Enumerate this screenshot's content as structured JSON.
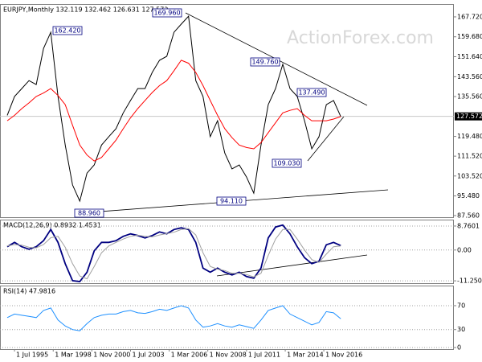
{
  "chart_data": [
    {
      "type": "line",
      "title": "EURJPY,Monthly 132.119 132.462 126.631 127.572",
      "watermark": "ActionForex.com",
      "x": [
        1995.0,
        1995.5,
        1996.0,
        1996.5,
        1997.0,
        1997.5,
        1998.0,
        1998.5,
        1999.0,
        1999.5,
        2000.0,
        2000.5,
        2001.0,
        2001.5,
        2002.0,
        2002.5,
        2003.0,
        2003.5,
        2004.0,
        2004.5,
        2005.0,
        2005.5,
        2006.0,
        2006.5,
        2007.0,
        2007.5,
        2008.0,
        2008.5,
        2009.0,
        2009.5,
        2010.0,
        2010.5,
        2011.0,
        2011.5,
        2012.0,
        2012.5,
        2013.0,
        2013.5,
        2014.0,
        2014.5,
        2015.0,
        2015.5,
        2016.0,
        2016.5,
        2017.0,
        2017.5,
        2018.0
      ],
      "xlim": [
        1994.5,
        2025.8
      ],
      "ylim": [
        86.9,
        172.9
      ],
      "yticks": [
        {
          "value": 167.72,
          "label": "167.720"
        },
        {
          "value": 159.68,
          "label": "159.680"
        },
        {
          "value": 151.64,
          "label": "151.640"
        },
        {
          "value": 143.56,
          "label": "143.560"
        },
        {
          "value": 135.56,
          "label": "135.560"
        },
        {
          "value": 119.48,
          "label": "119.480"
        },
        {
          "value": 111.52,
          "label": "111.520"
        },
        {
          "value": 103.52,
          "label": "103.520"
        },
        {
          "value": 95.48,
          "label": "95.480"
        },
        {
          "value": 87.56,
          "label": "87.560"
        }
      ],
      "grid": false,
      "last_price": 127.572,
      "annotations": [
        "169.960",
        "162.420",
        "88.960",
        "94.110",
        "149.760",
        "137.490",
        "109.030"
      ],
      "series": [
        {
          "color": "#000000",
          "values": [
            128,
            135.6,
            138.8,
            142,
            140.4,
            155,
            161.5,
            135.6,
            116,
            99.9,
            93.4,
            104.7,
            108,
            116,
            119.4,
            122.6,
            129,
            134,
            138.8,
            138.8,
            145.3,
            150.2,
            151.8,
            161.5,
            164.8,
            168,
            142,
            135.6,
            119.4,
            125.8,
            112.8,
            106.4,
            108,
            103.1,
            96.6,
            116,
            132.3,
            138.8,
            148.6,
            138.8,
            135.6,
            125.8,
            114.5,
            119.4,
            132.3,
            134,
            127.5
          ]
        },
        {
          "color": "#ff0000",
          "values": [
            125.8,
            128,
            130.7,
            133,
            135.6,
            137,
            138.8,
            136,
            132.3,
            124,
            116,
            112,
            109.6,
            111,
            114.5,
            118,
            122.6,
            127,
            130.7,
            134,
            137.2,
            140,
            142,
            146,
            150.2,
            149,
            145.3,
            140,
            134,
            128,
            122.6,
            119,
            116,
            115,
            114.5,
            117,
            121,
            125,
            129,
            130,
            130.7,
            128,
            125.8,
            125.8,
            125.8,
            126.5,
            127.5
          ]
        }
      ]
    },
    {
      "type": "line",
      "title": "MACD(12,26,9) 0.8932 1.4531",
      "x": [
        1995.0,
        1995.5,
        1996.0,
        1996.5,
        1997.0,
        1997.5,
        1998.0,
        1998.5,
        1999.0,
        1999.5,
        2000.0,
        2000.5,
        2001.0,
        2001.5,
        2002.0,
        2002.5,
        2003.0,
        2003.5,
        2004.0,
        2004.5,
        2005.0,
        2005.5,
        2006.0,
        2006.5,
        2007.0,
        2007.5,
        2008.0,
        2008.5,
        2009.0,
        2009.5,
        2010.0,
        2010.5,
        2011.0,
        2011.5,
        2012.0,
        2012.5,
        2013.0,
        2013.5,
        2014.0,
        2014.5,
        2015.0,
        2015.5,
        2016.0,
        2016.5,
        2017.0,
        2017.5,
        2018.0
      ],
      "xlim": [
        1994.5,
        2025.8
      ],
      "ylim": [
        -12.1,
        11.1
      ],
      "yticks": [
        8.7601,
        {
          "value": 0,
          "label": "0.00"
        },
        -11.2506
      ],
      "grid": true,
      "series": [
        {
          "color": "#000080",
          "values": [
            1.2,
            2.8,
            1.2,
            0.3,
            1.2,
            3.4,
            7.5,
            2.8,
            -5,
            -11.2,
            -11.5,
            -8.1,
            -0.3,
            2.8,
            2.8,
            3.4,
            5,
            5.9,
            5.3,
            4.4,
            5.3,
            6.6,
            5.9,
            7.5,
            8.1,
            7.5,
            2.8,
            -6.6,
            -8.1,
            -6.6,
            -8.1,
            -9.1,
            -8.1,
            -9.7,
            -10.3,
            -6.6,
            4.4,
            8.4,
            9.1,
            5.9,
            1.2,
            -2.8,
            -5,
            -4.1,
            1.9,
            2.8,
            1.6
          ]
        },
        {
          "color": "#a0a0a0",
          "values": [
            1.5,
            2,
            1.8,
            1,
            0.8,
            2,
            4.5,
            5,
            1,
            -5,
            -9.5,
            -10.5,
            -6,
            -1,
            1.5,
            2.8,
            4,
            5,
            5.4,
            5,
            4.8,
            5.5,
            6,
            6.5,
            7.5,
            7.8,
            5.5,
            -1,
            -6,
            -7,
            -7.5,
            -8.5,
            -8.5,
            -9,
            -9.8,
            -8.5,
            -2,
            4,
            7.5,
            7.5,
            4,
            0,
            -3.5,
            -4.5,
            -1.5,
            1.2,
            1.5
          ]
        }
      ]
    },
    {
      "type": "line",
      "title": "RSI(14) 47.9816",
      "x": [
        1995.0,
        1995.5,
        1996.0,
        1996.5,
        1997.0,
        1997.5,
        1998.0,
        1998.5,
        1999.0,
        1999.5,
        2000.0,
        2000.5,
        2001.0,
        2001.5,
        2002.0,
        2002.5,
        2003.0,
        2003.5,
        2004.0,
        2004.5,
        2005.0,
        2005.5,
        2006.0,
        2006.5,
        2007.0,
        2007.5,
        2008.0,
        2008.5,
        2009.0,
        2009.5,
        2010.0,
        2010.5,
        2011.0,
        2011.5,
        2012.0,
        2012.5,
        2013.0,
        2013.5,
        2014.0,
        2014.5,
        2015.0,
        2015.5,
        2016.0,
        2016.5,
        2017.0,
        2017.5,
        2018.0
      ],
      "xlim": [
        1994.5,
        2025.8
      ],
      "ylim": [
        -2.7,
        103.6
      ],
      "yticks": [
        70,
        30,
        0
      ],
      "grid": true,
      "xticks": [
        {
          "value": 1995.5,
          "label": "1 Jul 1995"
        },
        {
          "value": 1998.17,
          "label": "1 Mar 1998"
        },
        {
          "value": 2000.83,
          "label": "1 Nov 2000"
        },
        {
          "value": 2003.5,
          "label": "1 Jul 2003"
        },
        {
          "value": 2006.17,
          "label": "1 Mar 2006"
        },
        {
          "value": 2008.83,
          "label": "1 Nov 2008"
        },
        {
          "value": 2011.5,
          "label": "1 Jul 2011"
        },
        {
          "value": 2014.17,
          "label": "1 Mar 2014"
        },
        {
          "value": 2016.83,
          "label": "1 Nov 2016"
        }
      ],
      "series": [
        {
          "color": "#1e90ff",
          "values": [
            50,
            56,
            54,
            52,
            50,
            62,
            66,
            46,
            36,
            30,
            28,
            40,
            50,
            54,
            56,
            56,
            60,
            62,
            58,
            57,
            60,
            64,
            62,
            66,
            70,
            66,
            46,
            34,
            36,
            40,
            36,
            34,
            38,
            35,
            32,
            46,
            62,
            66,
            70,
            56,
            50,
            44,
            38,
            42,
            60,
            58,
            48
          ]
        }
      ]
    }
  ]
}
